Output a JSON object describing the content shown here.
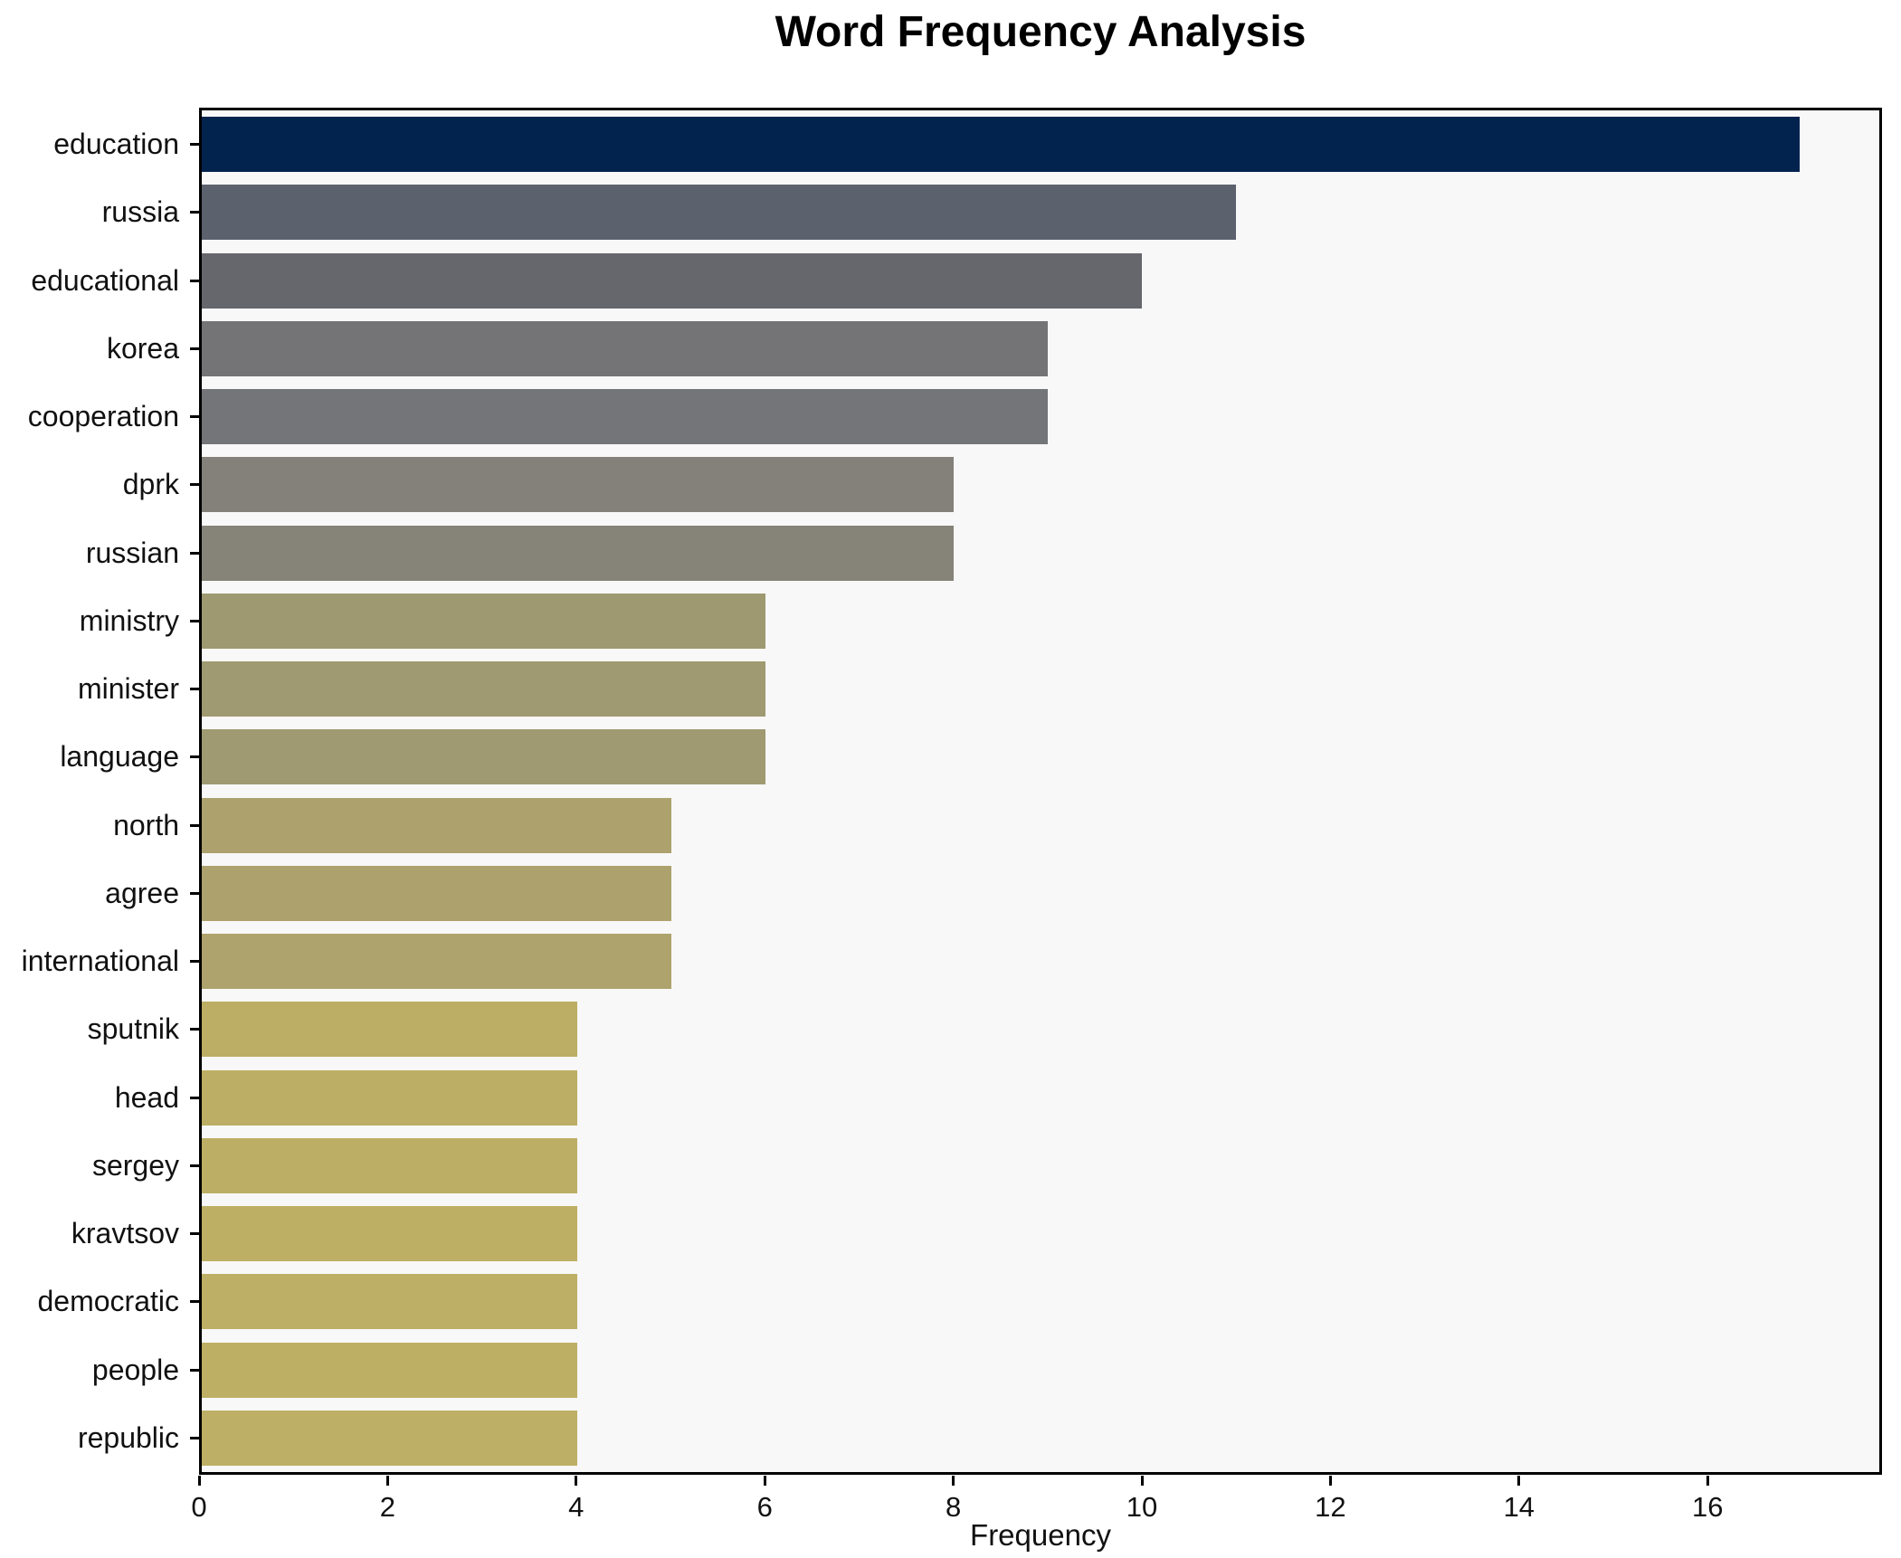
{
  "chart_data": {
    "type": "bar",
    "orientation": "horizontal",
    "title": "Word Frequency Analysis",
    "xlabel": "Frequency",
    "ylabel": "",
    "xlim": [
      0,
      17.85
    ],
    "x_ticks": [
      0,
      2,
      4,
      6,
      8,
      10,
      12,
      14,
      16
    ],
    "grid": false,
    "legend": false,
    "plot_background": "#f8f8f8",
    "figure_background": "#ffffff",
    "spine_color": "#000000",
    "categories": [
      "education",
      "russia",
      "educational",
      "korea",
      "cooperation",
      "dprk",
      "russian",
      "ministry",
      "minister",
      "language",
      "north",
      "agree",
      "international",
      "sputnik",
      "head",
      "sergey",
      "kravtsov",
      "democratic",
      "people",
      "republic"
    ],
    "values": [
      17,
      11,
      10,
      9,
      9,
      8,
      8,
      6,
      6,
      6,
      5,
      5,
      5,
      4,
      4,
      4,
      4,
      4,
      4,
      4
    ],
    "bar_colors": [
      "#03234f",
      "#5c616e",
      "#66676d",
      "#747477",
      "#747578",
      "#84817a",
      "#868379",
      "#9f9971",
      "#a09a72",
      "#a09a72",
      "#ada26e",
      "#ada26e",
      "#aea36d",
      "#bcae64",
      "#bcae64",
      "#bcaf65",
      "#bdaf64",
      "#bdaf65",
      "#bdb065",
      "#bdb066"
    ]
  }
}
